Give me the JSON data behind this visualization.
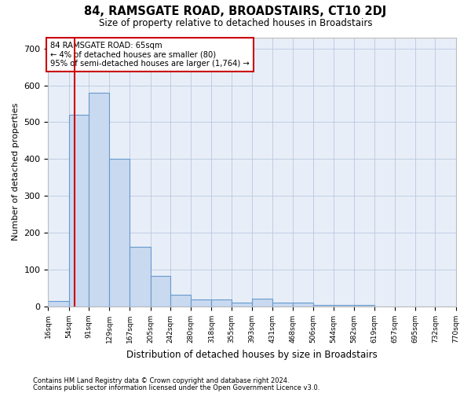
{
  "title": "84, RAMSGATE ROAD, BROADSTAIRS, CT10 2DJ",
  "subtitle": "Size of property relative to detached houses in Broadstairs",
  "xlabel": "Distribution of detached houses by size in Broadstairs",
  "ylabel": "Number of detached properties",
  "bar_color": "#c9d9f0",
  "bar_edge_color": "#6699cc",
  "background_color": "#e8eef8",
  "grid_color": "#b8c8e0",
  "annotation_box_color": "#cc0000",
  "red_line_x": 65,
  "annotation_text_line1": "84 RAMSGATE ROAD: 65sqm",
  "annotation_text_line2": "← 4% of detached houses are smaller (80)",
  "annotation_text_line3": "95% of semi-detached houses are larger (1,764) →",
  "bin_edges": [
    16,
    54,
    91,
    129,
    167,
    205,
    242,
    280,
    318,
    355,
    393,
    431,
    468,
    506,
    544,
    582,
    619,
    657,
    695,
    732,
    770
  ],
  "bar_heights": [
    15,
    520,
    580,
    400,
    163,
    83,
    33,
    20,
    20,
    10,
    22,
    10,
    10,
    5,
    5,
    5,
    0,
    0,
    0,
    0
  ],
  "yticks": [
    0,
    100,
    200,
    300,
    400,
    500,
    600,
    700
  ],
  "ylim": [
    0,
    730
  ],
  "tick_labels": [
    "16sqm",
    "54sqm",
    "91sqm",
    "129sqm",
    "167sqm",
    "205sqm",
    "242sqm",
    "280sqm",
    "318sqm",
    "355sqm",
    "393sqm",
    "431sqm",
    "468sqm",
    "506sqm",
    "544sqm",
    "582sqm",
    "619sqm",
    "657sqm",
    "695sqm",
    "732sqm",
    "770sqm"
  ],
  "footnote1": "Contains HM Land Registry data © Crown copyright and database right 2024.",
  "footnote2": "Contains public sector information licensed under the Open Government Licence v3.0."
}
